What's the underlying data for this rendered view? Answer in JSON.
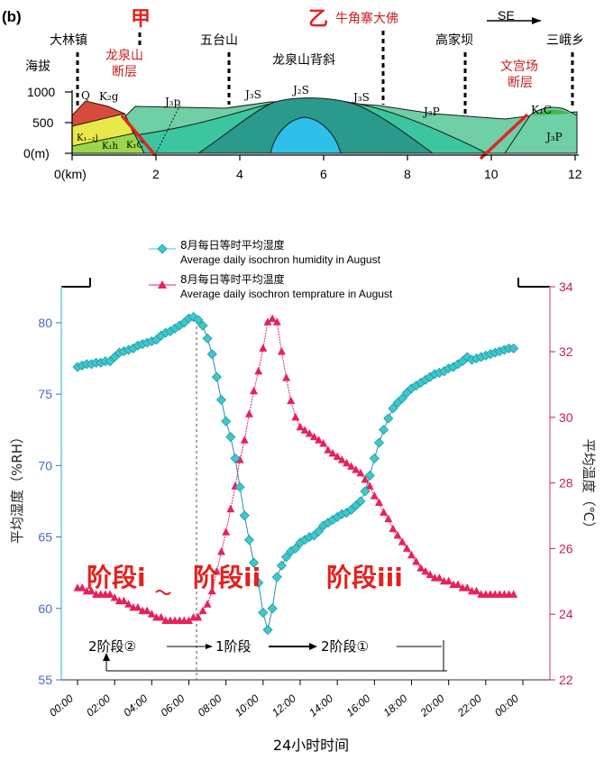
{
  "section": {
    "panel_label": "(b)",
    "marker_jia": "甲",
    "marker_yi": "乙",
    "direction": "SE",
    "places": {
      "dalin": "大林镇",
      "wutai": "五台山",
      "niujiao": "牛角寨大佛",
      "gaojiaba": "高家坝",
      "sane": "三峨乡",
      "anticline": "龙泉山背斜"
    },
    "faults": {
      "longquan_1": "龙泉山",
      "longquan_2": "断层",
      "wengong_1": "文宫场",
      "wengong_2": "断层"
    },
    "y_title": "海拔",
    "y_unit": "0(m)",
    "y_ticks": [
      "1000",
      "500"
    ],
    "x_ticks": [
      "0(km)",
      "2",
      "4",
      "6",
      "8",
      "10",
      "12"
    ],
    "strata": {
      "q": "Q",
      "k2g": "K₂g",
      "k12j": "K₁₋₂j",
      "k1h": "K₁h",
      "k1c_left": "K₁C",
      "j3p_1": "J₃p",
      "j3s_1": "J₃S",
      "j2s": "J₂S",
      "j3s_2": "J₃S",
      "j3p_2": "J₃P",
      "k1c_right": "K₁C",
      "j3p_3": "J₃P"
    },
    "colors": {
      "fault": "#e52222",
      "j3p": "#6fcfa6",
      "j3s": "#3cc6a0",
      "j2s": "#2a9a8c",
      "core": "#2fc0ea",
      "k_red": "#d84a3a",
      "k_yellow": "#e8e84a",
      "k_green": "#9bd64a"
    }
  },
  "legend": {
    "humidity_cn": "8月每日等时平均湿度",
    "humidity_en": "Average daily isochron humidity in August",
    "temp_cn": "8月每日等时平均温度",
    "temp_en": "Average daily isochron temprature in August"
  },
  "stage_labels": [
    "阶段i",
    "阶段ii",
    "阶段iii"
  ],
  "bottom_stages": [
    "2阶段②",
    "1阶段",
    "2阶段①"
  ],
  "chart_data": {
    "type": "line",
    "xlabel": "24小时时间",
    "ylabel_left": "平均湿度（%RH）",
    "ylabel_right": "平均温度（℃）",
    "x_ticks": [
      "00:00",
      "02:00",
      "04:00",
      "06:00",
      "08:00",
      "10:00",
      "12:00",
      "14:00",
      "16:00",
      "18:00",
      "20:00",
      "22:00",
      "00:00"
    ],
    "y_left_ticks": [
      "55",
      "60",
      "65",
      "70",
      "75",
      "80"
    ],
    "y_right_ticks": [
      "22",
      "24",
      "26",
      "28",
      "30",
      "32",
      "34"
    ],
    "ylim_left": [
      55,
      80.5
    ],
    "ylim_right": [
      22,
      34
    ],
    "xlim": [
      0,
      24
    ],
    "colors": {
      "humidity": "#3cc8cc",
      "temperature": "#e8205a",
      "axis_left": "#4b68c8",
      "axis_right": "#c0205a",
      "stage_text": "#e81e1e"
    },
    "series": [
      {
        "name": "Average daily isochron humidity in August",
        "x": [
          0,
          0.25,
          0.5,
          0.75,
          1,
          1.25,
          1.5,
          1.75,
          2,
          2.25,
          2.5,
          2.75,
          3,
          3.25,
          3.5,
          3.75,
          4,
          4.25,
          4.5,
          4.75,
          5,
          5.25,
          5.5,
          5.75,
          6,
          6.25,
          6.5,
          6.75,
          7,
          7.25,
          7.5,
          7.75,
          8,
          8.25,
          8.5,
          8.75,
          9,
          9.25,
          9.5,
          9.75,
          10,
          10.25,
          10.5,
          10.75,
          11,
          11.25,
          11.5,
          11.75,
          12,
          12.25,
          12.5,
          12.75,
          13,
          13.25,
          13.5,
          13.75,
          14,
          14.25,
          14.5,
          14.75,
          15,
          15.25,
          15.5,
          15.75,
          16,
          16.25,
          16.5,
          16.75,
          17,
          17.25,
          17.5,
          17.75,
          18,
          18.25,
          18.5,
          18.75,
          19,
          19.25,
          19.5,
          19.75,
          20,
          20.25,
          20.5,
          20.75,
          21,
          21.25,
          21.5,
          21.75,
          22,
          22.25,
          22.5,
          22.75,
          23,
          23.25,
          23.5
        ],
        "values": [
          76.9,
          77.0,
          77.1,
          77.1,
          77.2,
          77.2,
          77.3,
          77.3,
          77.6,
          77.9,
          78.0,
          78.1,
          78.2,
          78.4,
          78.5,
          78.6,
          78.7,
          78.8,
          79.1,
          79.3,
          79.4,
          79.6,
          79.8,
          80.0,
          80.3,
          80.4,
          80.2,
          79.8,
          78.9,
          77.8,
          76.2,
          74.6,
          73.1,
          72.0,
          70.5,
          68.5,
          66.5,
          64.8,
          63.2,
          61.8,
          59.7,
          58.5,
          60.0,
          62.2,
          63.0,
          63.6,
          64.0,
          64.2,
          64.6,
          64.8,
          65.0,
          65.1,
          65.4,
          65.8,
          66.0,
          66.2,
          66.4,
          66.6,
          66.7,
          66.9,
          67.2,
          67.5,
          68.2,
          69.3,
          70.5,
          71.6,
          72.5,
          73.3,
          74.0,
          74.4,
          74.7,
          75.1,
          75.4,
          75.6,
          75.8,
          76.0,
          76.2,
          76.4,
          76.5,
          76.6,
          76.8,
          76.9,
          77.1,
          77.3,
          77.6,
          77.4,
          77.5,
          77.6,
          77.7,
          77.8,
          77.9,
          78.0,
          78.1,
          78.2,
          78.2
        ]
      },
      {
        "name": "Average daily isochron temprature in August",
        "x": [
          0,
          0.25,
          0.5,
          0.75,
          1,
          1.25,
          1.5,
          1.75,
          2,
          2.25,
          2.5,
          2.75,
          3,
          3.25,
          3.5,
          3.75,
          4,
          4.25,
          4.5,
          4.75,
          5,
          5.25,
          5.5,
          5.75,
          6,
          6.25,
          6.5,
          6.75,
          7,
          7.25,
          7.5,
          7.75,
          8,
          8.25,
          8.5,
          8.75,
          9,
          9.25,
          9.5,
          9.75,
          10,
          10.25,
          10.5,
          10.75,
          11,
          11.25,
          11.5,
          11.75,
          12,
          12.25,
          12.5,
          12.75,
          13,
          13.25,
          13.5,
          13.75,
          14,
          14.25,
          14.5,
          14.75,
          15,
          15.25,
          15.5,
          15.75,
          16,
          16.25,
          16.5,
          16.75,
          17,
          17.25,
          17.5,
          17.75,
          18,
          18.25,
          18.5,
          18.75,
          19,
          19.25,
          19.5,
          19.75,
          20,
          20.25,
          20.5,
          20.75,
          21,
          21.25,
          21.5,
          21.75,
          22,
          22.25,
          22.5,
          22.75,
          23,
          23.25,
          23.5
        ],
        "values": [
          24.8,
          24.8,
          24.7,
          24.7,
          24.6,
          24.6,
          24.6,
          24.6,
          24.5,
          24.4,
          24.4,
          24.3,
          24.2,
          24.2,
          24.1,
          24.1,
          24.0,
          23.9,
          23.9,
          23.8,
          23.8,
          23.8,
          23.8,
          23.8,
          23.8,
          23.9,
          23.9,
          24.1,
          24.3,
          24.7,
          25.3,
          25.9,
          26.5,
          27.2,
          27.9,
          28.7,
          29.3,
          30.1,
          30.8,
          31.4,
          32.1,
          32.9,
          33.0,
          32.9,
          32.0,
          31.2,
          30.5,
          30.0,
          29.7,
          29.6,
          29.5,
          29.4,
          29.3,
          29.2,
          29.0,
          28.9,
          28.8,
          28.7,
          28.6,
          28.5,
          28.4,
          28.3,
          28.1,
          27.9,
          27.6,
          27.4,
          27.1,
          26.9,
          26.6,
          26.4,
          26.2,
          26.0,
          25.8,
          25.6,
          25.4,
          25.3,
          25.2,
          25.1,
          25.1,
          25.0,
          25.0,
          24.9,
          24.9,
          24.8,
          24.8,
          24.7,
          24.7,
          24.6,
          24.6,
          24.6,
          24.6,
          24.6,
          24.6,
          24.6,
          24.6
        ]
      }
    ]
  }
}
